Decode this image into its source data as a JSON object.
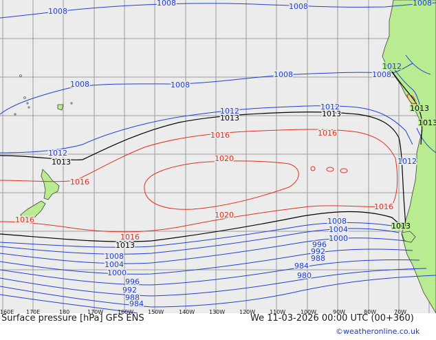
{
  "map": {
    "title": "Surface pressure [hPa] GFS ENS",
    "valid_time": "We 11-03-2026 00:00 UTC (00+360)",
    "credit": "©weatheronline.co.uk",
    "colors": {
      "sea": "#ececec",
      "land": "#b9ec90",
      "grid": "#9a9a9a",
      "isobar_low": "#1f3fd6",
      "isobar_high": "#e0301e",
      "isobar_1013": "#000000",
      "coast": "#404040"
    },
    "longitude_labels": [
      "160E",
      "170E",
      "180",
      "170W",
      "160W",
      "150W",
      "140W",
      "130W",
      "120W",
      "110W",
      "100W",
      "90W",
      "80W",
      "70W"
    ],
    "isobar_labels": {
      "top_1008_a": "1008",
      "top_1008_b": "1008",
      "top_1008_c": "1008",
      "top_1008_d": "1008",
      "mid_1008_a": "1008",
      "mid_1008_b": "1008",
      "mid_1008_c": "1008",
      "mid_1008_d": "1008",
      "coast_1012_a": "1012",
      "north_1012_a": "1012",
      "north_1012_b": "1012",
      "north_1012_c": "1012",
      "coast_1012_b": "1012",
      "north_1013_a": "1013",
      "north_1013_b": "1013",
      "north_1013_c": "1013",
      "coast_1013_a": "1013",
      "coast_1013_b": "1013",
      "high_1016_a": "1016",
      "high_1016_b": "1016",
      "high_1016_c": "1016",
      "high_1016_d": "1016",
      "high_1016_e": "1016",
      "high_1016_f": "1016",
      "high_1020_a": "1020",
      "high_1020_b": "1020",
      "south_1013_a": "1013",
      "south_1008_a": "1008",
      "south_1004_a": "1004",
      "south_1000_a": "1000",
      "south_1008_b": "1008",
      "south_1004_b": "1004",
      "south_1000_b": "1000",
      "south_996_a": "996",
      "south_992_a": "992",
      "south_988_a": "988",
      "south_984_a": "984",
      "south_980_a": "980",
      "south_996_b": "996",
      "south_992_b": "992",
      "south_988_b": "988",
      "south_984_b": "984"
    }
  }
}
